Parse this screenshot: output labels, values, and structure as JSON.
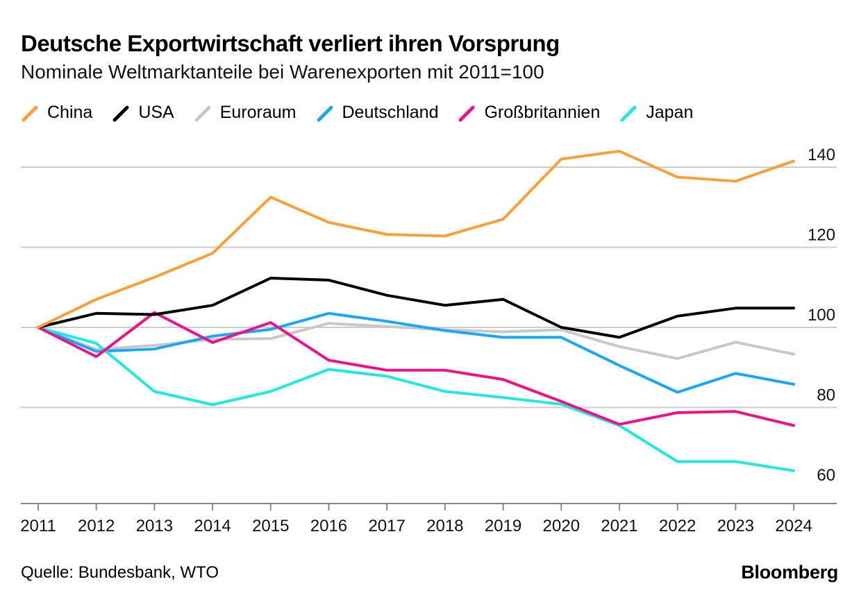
{
  "header": {
    "title": "Deutsche Exportwirtschaft verliert ihren Vorsprung",
    "subtitle": "Nominale Weltmarktanteile bei Warenexporten mit 2011=100"
  },
  "footer": {
    "source": "Quelle: Bundesbank, WTO",
    "brand": "Bloomberg"
  },
  "chart_data": {
    "type": "line",
    "title": "Deutsche Exportwirtschaft verliert ihren Vorsprung",
    "subtitle": "Nominale Weltmarktanteile bei Warenexporten mit 2011=100",
    "x": [
      "2011",
      "2012",
      "2013",
      "2014",
      "2015",
      "2016",
      "2017",
      "2018",
      "2019",
      "2020",
      "2021",
      "2022",
      "2023",
      "2024"
    ],
    "ylim": [
      56,
      144
    ],
    "yticks": [
      60,
      80,
      100,
      120,
      140
    ],
    "grid": true,
    "legend": "top",
    "series": [
      {
        "name": "China",
        "color": "#f9a03a",
        "values": [
          100,
          107,
          112.5,
          118.5,
          132.5,
          126.2,
          123.2,
          122.8,
          127,
          142,
          144,
          137.5,
          136.5,
          141.5
        ]
      },
      {
        "name": "USA",
        "color": "#000000",
        "values": [
          100,
          103.5,
          103.2,
          105.5,
          112.3,
          111.8,
          108,
          105.5,
          107,
          100,
          97.5,
          102.8,
          104.8,
          104.8
        ]
      },
      {
        "name": "Euroraum",
        "color": "#c8c8c8",
        "values": [
          100,
          94.5,
          95.5,
          97,
          97.2,
          101,
          100.2,
          99.4,
          98.9,
          99.4,
          95.2,
          92.2,
          96.3,
          93.3
        ]
      },
      {
        "name": "Deutschland",
        "color": "#1aa8f5",
        "values": [
          100,
          94,
          94.6,
          97.8,
          99.5,
          103.5,
          101.5,
          99.2,
          97.5,
          97.5,
          90.5,
          83.8,
          88.5,
          85.8
        ]
      },
      {
        "name": "Großbritannien",
        "color": "#ee1188",
        "values": [
          100,
          92.7,
          103.7,
          96.2,
          101.2,
          91.8,
          89.3,
          89.3,
          87,
          81.5,
          75.8,
          78.7,
          79,
          75.5
        ]
      },
      {
        "name": "Japan",
        "color": "#22e8e0",
        "values": [
          100,
          96,
          84,
          80.7,
          84,
          89.5,
          87.8,
          84,
          82.5,
          80.8,
          75.5,
          66.5,
          66.5,
          64.2
        ]
      }
    ]
  }
}
